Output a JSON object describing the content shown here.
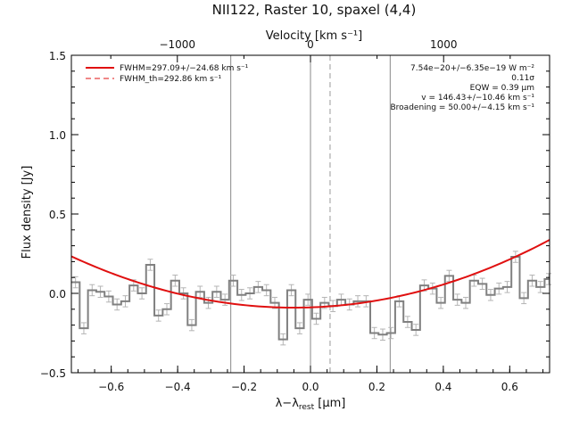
{
  "chart_data": {
    "type": "line",
    "title": "NII122, Raster 10, spaxel (4,4)",
    "xlabel_main": "λ−λ",
    "xlabel_sub": "rest",
    "xlabel_unit": " [μm]",
    "ylabel": "Flux density [Jy]",
    "top_axis_label": "Velocity [km s⁻¹]",
    "xlim": [
      -0.72,
      0.72
    ],
    "ylim": [
      -0.5,
      1.5
    ],
    "top_xlim": [
      -1796,
      1796
    ],
    "xticks": [
      -0.6,
      -0.4,
      -0.2,
      0.0,
      0.2,
      0.4,
      0.6
    ],
    "xtick_labels": [
      "−0.6",
      "−0.4",
      "−0.2",
      "0.0",
      "0.2",
      "0.4",
      "0.6"
    ],
    "yticks": [
      -0.5,
      0.0,
      0.5,
      1.0,
      1.5
    ],
    "ytick_labels": [
      "−0.5",
      "0.0",
      "0.5",
      "1.0",
      "1.5"
    ],
    "top_ticks": [
      -1000,
      0,
      1000
    ],
    "top_tick_labels": [
      "−1000",
      "0",
      "1000"
    ],
    "vlines_solid": [
      -0.24,
      0.0,
      0.24
    ],
    "vline_dashed": 0.059,
    "spectrum": {
      "x": [
        -0.72,
        -0.695,
        -0.67,
        -0.645,
        -0.62,
        -0.595,
        -0.57,
        -0.545,
        -0.52,
        -0.495,
        -0.47,
        -0.445,
        -0.42,
        -0.395,
        -0.37,
        -0.345,
        -0.32,
        -0.295,
        -0.27,
        -0.245,
        -0.22,
        -0.195,
        -0.17,
        -0.145,
        -0.12,
        -0.095,
        -0.07,
        -0.045,
        -0.02,
        0.005,
        0.03,
        0.055,
        0.08,
        0.105,
        0.13,
        0.155,
        0.18,
        0.205,
        0.23,
        0.255,
        0.28,
        0.305,
        0.33,
        0.355,
        0.38,
        0.405,
        0.43,
        0.455,
        0.48,
        0.505,
        0.53,
        0.555,
        0.58,
        0.605,
        0.63,
        0.655,
        0.68,
        0.705
      ],
      "y": [
        0.07,
        -0.22,
        0.02,
        0.01,
        -0.02,
        -0.07,
        -0.05,
        0.05,
        0.0,
        0.18,
        -0.14,
        -0.1,
        0.08,
        0.0,
        -0.2,
        0.01,
        -0.06,
        0.01,
        -0.04,
        0.08,
        -0.01,
        0.0,
        0.04,
        0.02,
        -0.06,
        -0.29,
        0.02,
        -0.22,
        -0.04,
        -0.16,
        -0.06,
        -0.08,
        -0.04,
        -0.07,
        -0.05,
        -0.05,
        -0.25,
        -0.26,
        -0.25,
        -0.05,
        -0.18,
        -0.23,
        0.05,
        0.03,
        -0.06,
        0.11,
        -0.04,
        -0.06,
        0.08,
        0.06,
        -0.01,
        0.03,
        0.04,
        0.23,
        -0.03,
        0.08,
        0.04,
        0.09
      ],
      "errors": 0.035
    },
    "fit_curve": {
      "a": -0.09,
      "center": -0.05,
      "b": 0.72
    },
    "legend": [
      {
        "style": "solid",
        "label": "FWHM=297.09+/−24.68 km s⁻¹"
      },
      {
        "style": "dashed",
        "label": "FWHM_th=292.86 km s⁻¹"
      }
    ],
    "annotations": [
      "7.54e−20+/−6.35e−19 W m⁻²",
      "0.11σ",
      "EQW = 0.39 μm",
      "v = 146.43+/−10.46 km s⁻¹",
      "Broadening = 50.00+/−4.15 km s⁻¹"
    ],
    "colors": {
      "fit": "#e01010",
      "spectrum": "#808080",
      "error": "#b4b4b4",
      "axes": "#000000"
    }
  }
}
